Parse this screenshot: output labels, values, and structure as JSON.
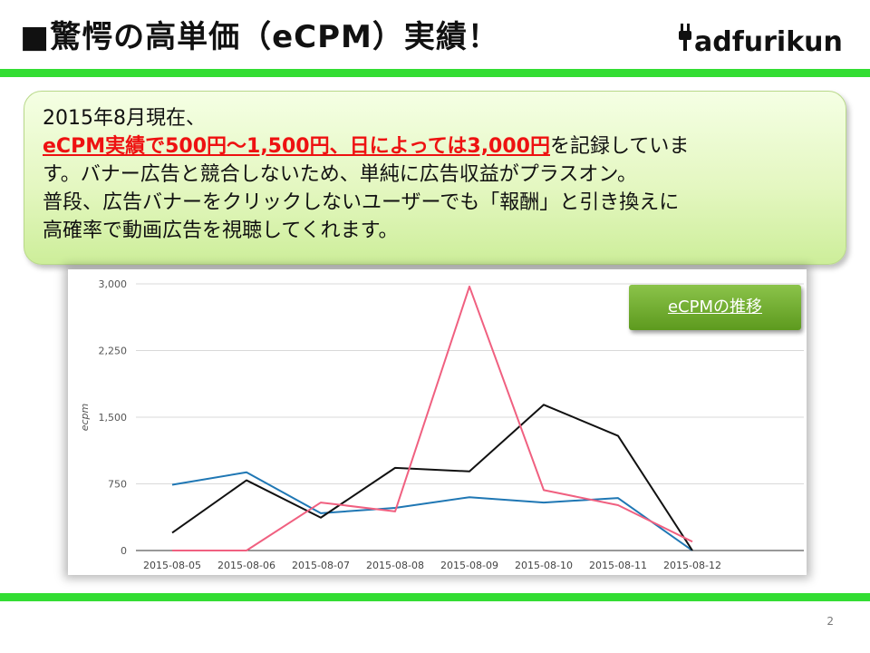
{
  "slide": {
    "title": "■驚愕の高単価（eCPM）実績！",
    "logo": "adfurikun",
    "page_number": "2"
  },
  "callout": {
    "line1": "2015年8月現在、",
    "highlight": "eCPM実績で500円～1,500円、日によっては3,000円",
    "line2_rest": "を記録していま",
    "line3": "す。バナー広告と競合しないため、単純に広告収益がプラスオン。",
    "line4": "普段、広告バナーをクリックしないユーザーでも「報酬」と引き換えに",
    "line5": "高確率で動画広告を視聴してくれます。"
  },
  "badge": "eCPMの推移",
  "colors": {
    "accent_green": "#33dd33",
    "series_blue": "#1f77b4",
    "series_black": "#111111",
    "series_pink": "#f06080"
  },
  "chart_data": {
    "type": "line",
    "x": [
      "2015-08-05",
      "2015-08-06",
      "2015-08-07",
      "2015-08-08",
      "2015-08-09",
      "2015-08-10",
      "2015-08-11",
      "2015-08-12"
    ],
    "ylabel": "ecpm",
    "ylim": [
      0,
      3000
    ],
    "yticks": [
      "0",
      "750",
      "1,500",
      "2,250",
      "3,000"
    ],
    "ytick_values": [
      0,
      750,
      1500,
      2250,
      3000
    ],
    "grid": true,
    "series": [
      {
        "color": "#1f77b4",
        "values": [
          740,
          880,
          420,
          480,
          600,
          540,
          590,
          0
        ]
      },
      {
        "color": "#111111",
        "values": [
          200,
          790,
          370,
          930,
          890,
          1640,
          1290,
          0
        ]
      },
      {
        "color": "#f06080",
        "values": [
          0,
          0,
          540,
          440,
          2970,
          680,
          510,
          100
        ]
      }
    ]
  }
}
